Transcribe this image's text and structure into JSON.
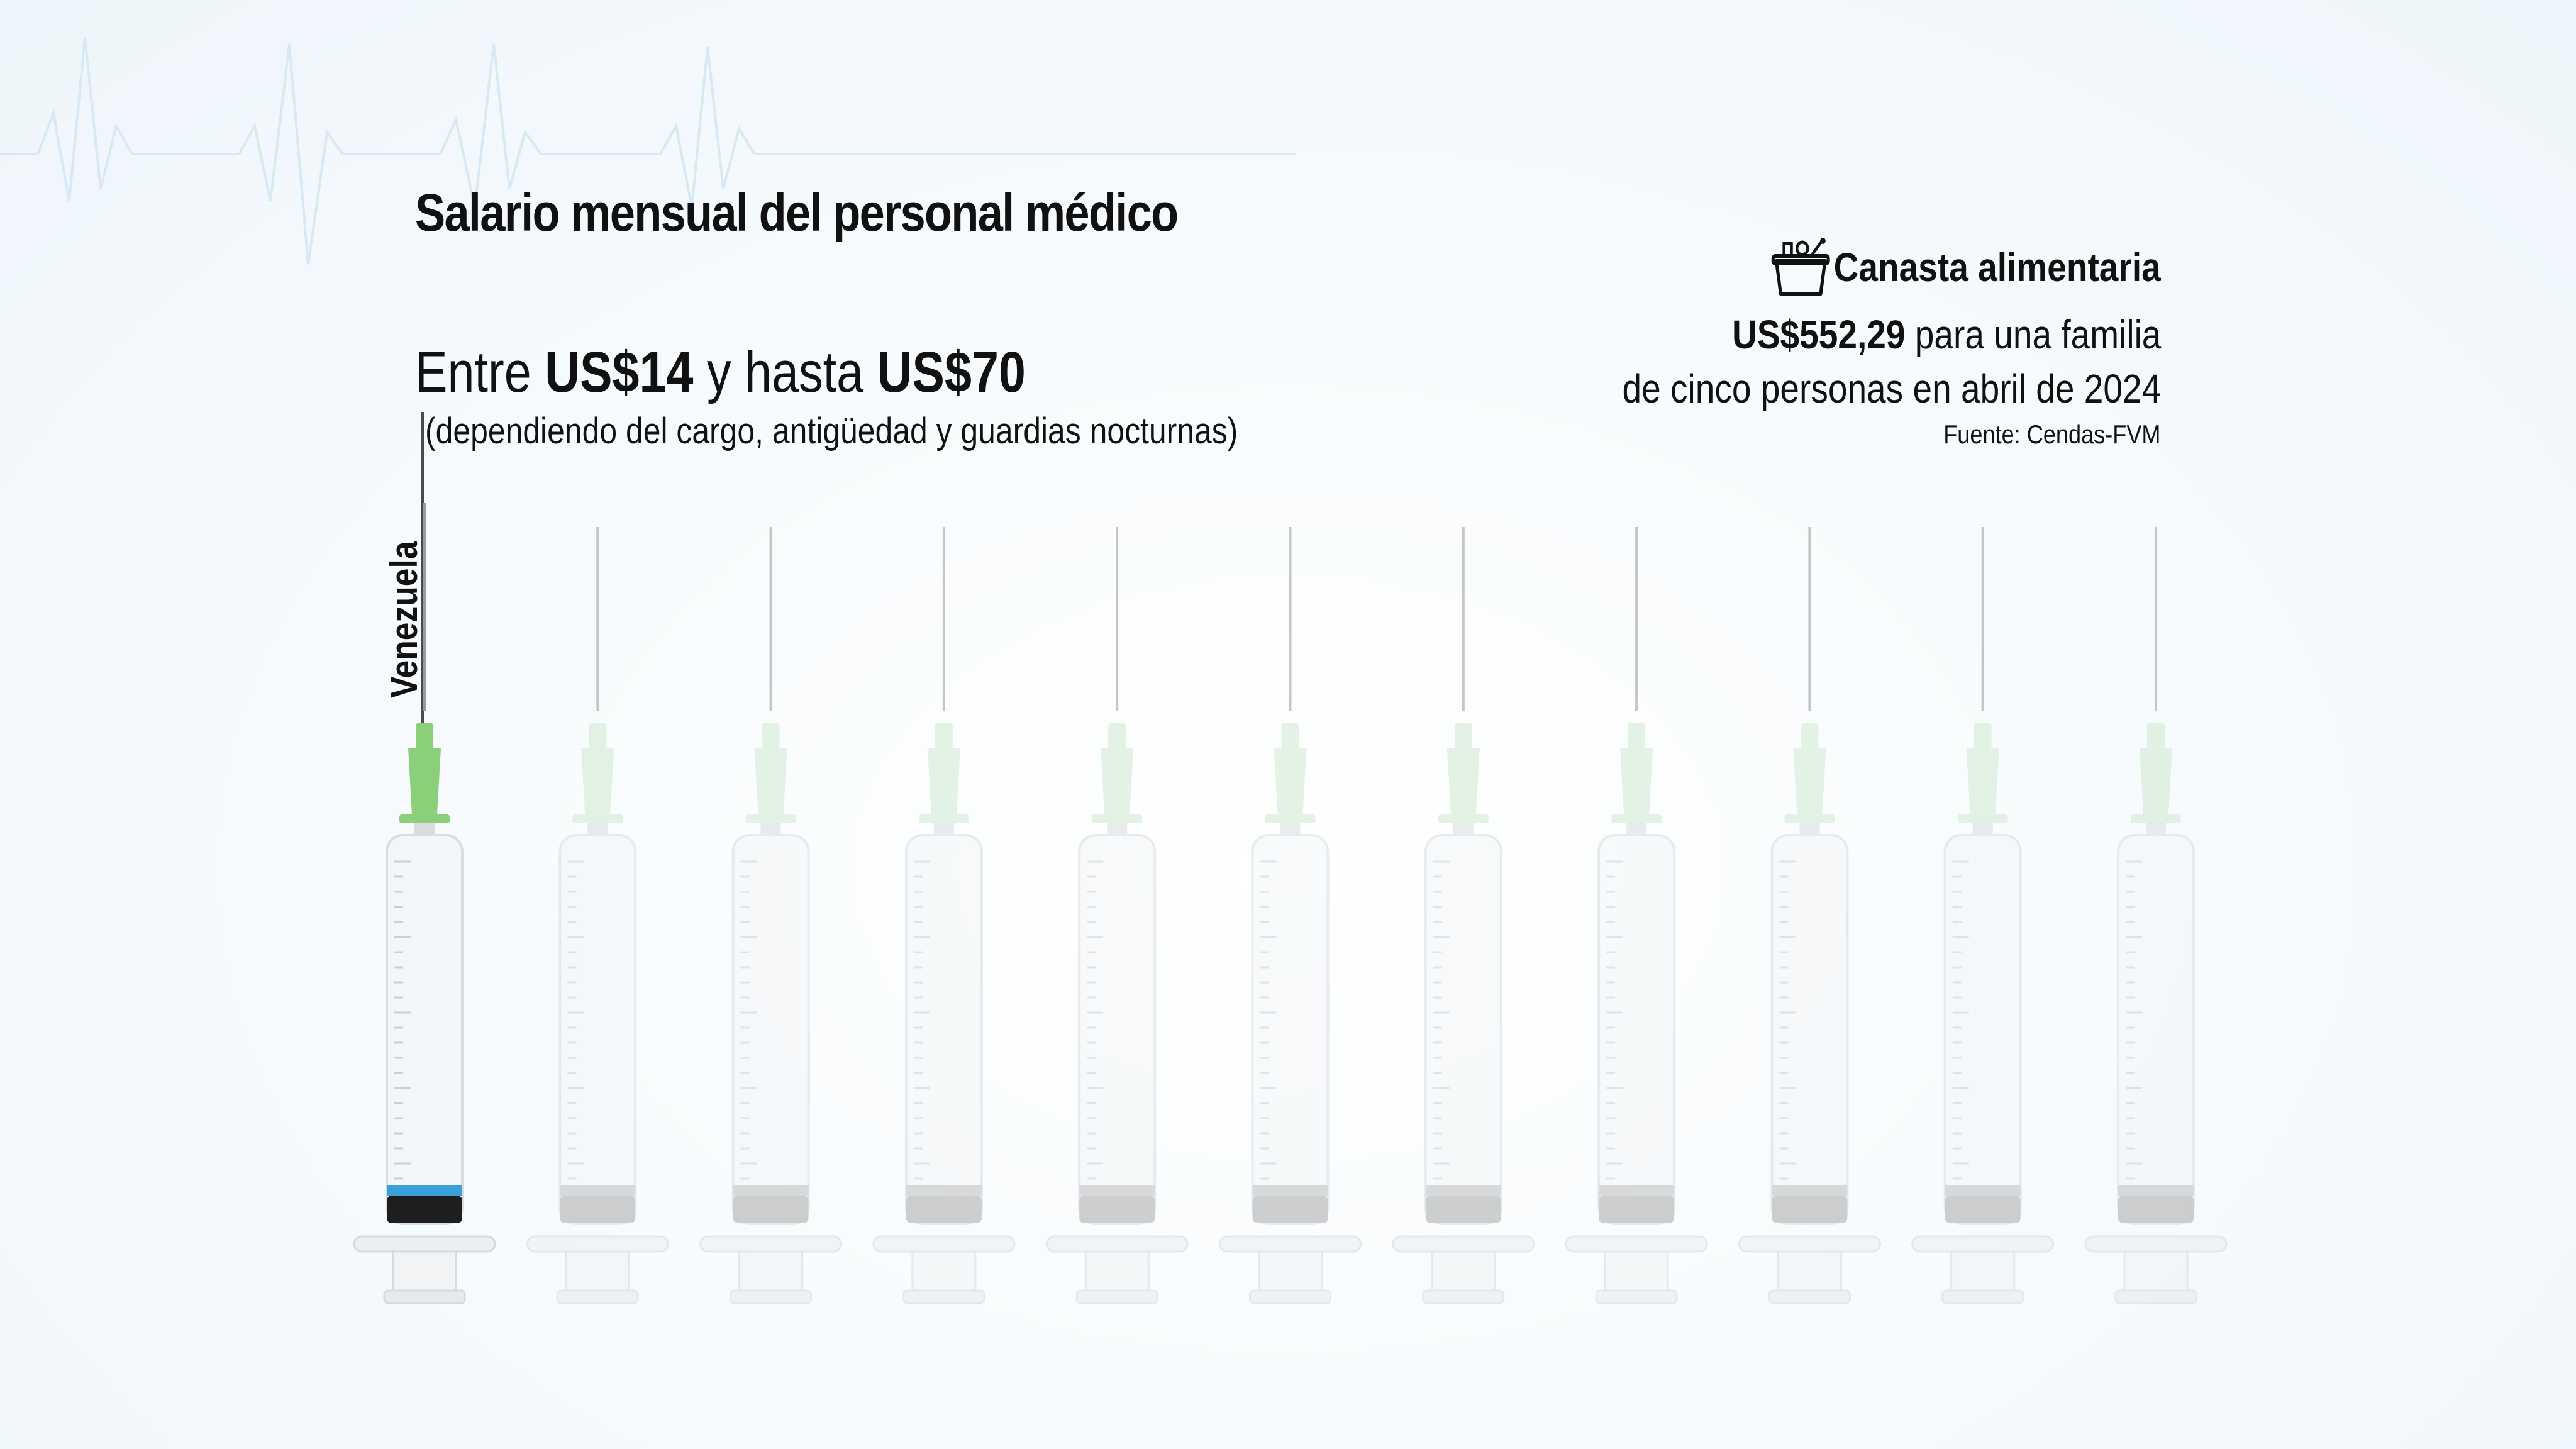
{
  "title": "Salario mensual del personal médico",
  "range": {
    "prefix": "Entre",
    "min_label": "US$14",
    "middle": "y hasta",
    "max_label": "US$70",
    "note": "(dependiendo del cargo, antigüedad y guardias nocturnas)"
  },
  "basket": {
    "title": "Canasta alimentaria",
    "amount": "US$552,29",
    "line2_rest": "para una familia",
    "line3": "de cinco personas en abril de 2024",
    "source": "Fuente: Cendas-FVM",
    "icon": "food-basket-icon"
  },
  "chart_data": {
    "type": "pictogram",
    "unit": "US$",
    "salary_max": 70,
    "basket_value": 552.29,
    "syringe_count": 11,
    "highlighted": [
      {
        "label": "Venezuela",
        "value": 70,
        "syringe_index": 0
      }
    ],
    "colors": {
      "highlight_hub": "#8ccf7a",
      "faded_hub": "#cfead0",
      "plunger": "#1e1e1e",
      "plunger_tip": "#3aa0d9",
      "faded_plunger": "#a9a9a9",
      "barrel": "#f3f6f8"
    }
  }
}
